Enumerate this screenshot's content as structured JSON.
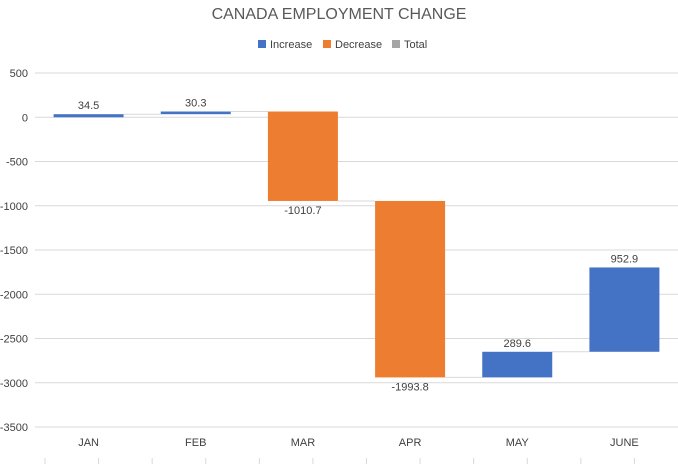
{
  "chart_data": {
    "type": "waterfall",
    "title": "CANADA EMPLOYMENT CHANGE",
    "categories": [
      "JAN",
      "FEB",
      "MAR",
      "APR",
      "MAY",
      "JUNE"
    ],
    "values": [
      34.5,
      30.3,
      -1010.7,
      -1993.8,
      289.6,
      952.9
    ],
    "data_labels": [
      "34.5",
      "30.3",
      "-1010.7",
      "-1993.8",
      "289.6",
      "952.9"
    ],
    "ylim": [
      -3500,
      500
    ],
    "yticks": [
      500,
      0,
      -500,
      -1000,
      -1500,
      -2000,
      -2500,
      -3000,
      -3500
    ],
    "grid": true,
    "legend_position": "top",
    "legend": [
      {
        "label": "Increase",
        "color": "#4472c4"
      },
      {
        "label": "Decrease",
        "color": "#ed7d31"
      },
      {
        "label": "Total",
        "color": "#a5a5a5"
      }
    ],
    "colors": {
      "increase": "#4472c4",
      "decrease": "#ed7d31",
      "total": "#a5a5a5"
    }
  }
}
